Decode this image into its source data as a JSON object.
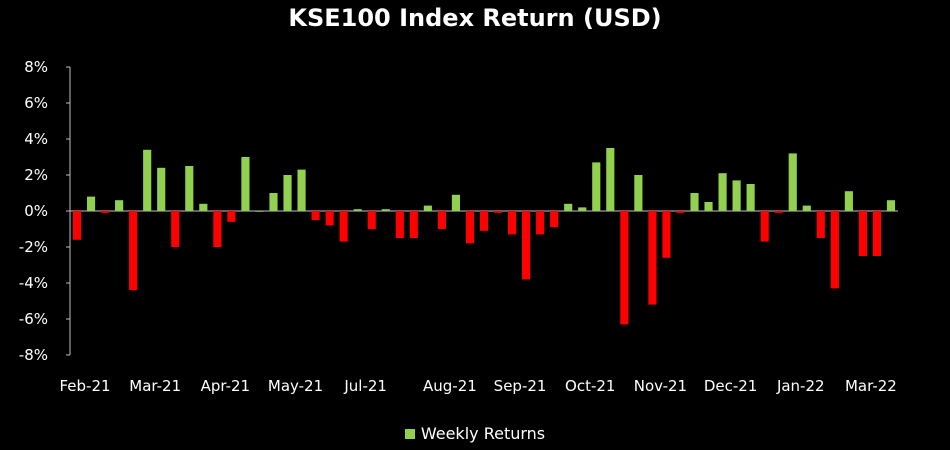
{
  "chart_data": {
    "type": "bar",
    "title": "KSE100 Index Return (USD)",
    "xlabel": "",
    "ylabel": "",
    "ylim": [
      -8,
      8
    ],
    "y_ticks": [
      "8%",
      "6%",
      "4%",
      "2%",
      "0%",
      "-2%",
      "-4%",
      "-6%",
      "-8%"
    ],
    "x_tick_labels": [
      {
        "label": "Feb-21",
        "index": 0
      },
      {
        "label": "Mar-21",
        "index": 5
      },
      {
        "label": "Apr-21",
        "index": 10
      },
      {
        "label": "May-21",
        "index": 15
      },
      {
        "label": "Jul-21",
        "index": 20
      },
      {
        "label": "Aug-21",
        "index": 26
      },
      {
        "label": "Sep-21",
        "index": 31
      },
      {
        "label": "Oct-21",
        "index": 36
      },
      {
        "label": "Nov-21",
        "index": 41
      },
      {
        "label": "Dec-21",
        "index": 46
      },
      {
        "label": "Jan-22",
        "index": 51
      },
      {
        "label": "Mar-22",
        "index": 56
      }
    ],
    "grid": false,
    "legend_position": "bottom",
    "series": [
      {
        "name": "Weekly Returns",
        "positive_color": "#92d050",
        "negative_color": "#ff0000",
        "values": [
          -1.6,
          0.8,
          -0.1,
          0.6,
          -4.4,
          3.4,
          2.4,
          -2.0,
          2.5,
          0.4,
          -2.0,
          -0.6,
          3.0,
          0.0,
          1.0,
          2.0,
          2.3,
          -0.5,
          -0.8,
          -1.7,
          0.1,
          -1.0,
          0.1,
          -1.5,
          -1.5,
          0.3,
          -1.0,
          0.9,
          -1.8,
          -1.1,
          -0.1,
          -1.3,
          -3.8,
          -1.3,
          -0.9,
          0.4,
          0.2,
          2.7,
          3.5,
          -6.3,
          2.0,
          -5.2,
          -2.6,
          -0.1,
          1.0,
          0.5,
          2.1,
          1.7,
          1.5,
          -1.7,
          -0.1,
          3.2,
          0.3,
          -1.5,
          -4.3,
          1.1,
          -2.5,
          -2.5,
          0.6
        ]
      }
    ]
  }
}
